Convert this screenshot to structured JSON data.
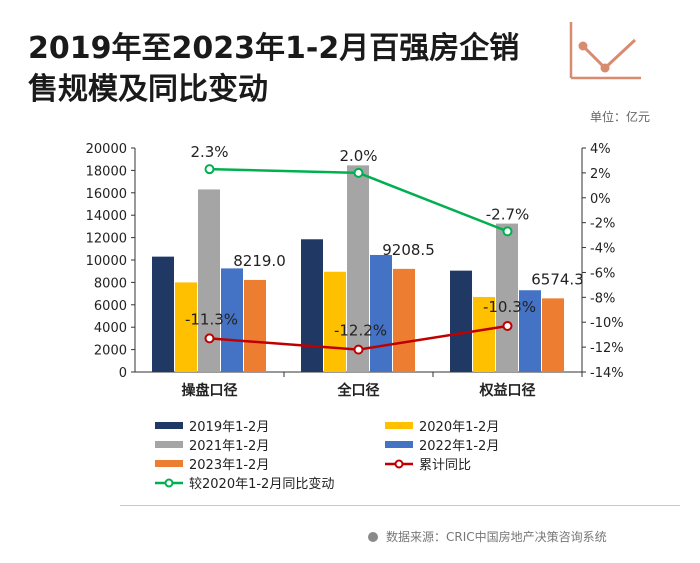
{
  "title": "2019年至2023年1-2月百强房企销售规模及同比变动",
  "unit_label": "单位：亿元",
  "source_label": "数据来源：CRIC中国房地产决策咨询系统",
  "chart_data": {
    "type": "bar",
    "categories": [
      "操盘口径",
      "全口径",
      "权益口径"
    ],
    "series": [
      {
        "name": "2019年1-2月",
        "type": "bar",
        "axis": "left",
        "color": "#1f3864",
        "values": [
          10300,
          11850,
          9050
        ]
      },
      {
        "name": "2020年1-2月",
        "type": "bar",
        "axis": "left",
        "color": "#ffc000",
        "values": [
          8000,
          8950,
          6700
        ]
      },
      {
        "name": "2021年1-2月",
        "type": "bar",
        "axis": "left",
        "color": "#a5a5a5",
        "values": [
          16300,
          18450,
          13250
        ]
      },
      {
        "name": "2022年1-2月",
        "type": "bar",
        "axis": "left",
        "color": "#4472c4",
        "values": [
          9250,
          10450,
          7300
        ]
      },
      {
        "name": "2023年1-2月",
        "type": "bar",
        "axis": "left",
        "color": "#ed7d31",
        "values": [
          8219.0,
          9208.5,
          6574.3
        ]
      },
      {
        "name": "累计同比",
        "type": "line",
        "axis": "right",
        "color": "#c00000",
        "values": [
          -11.3,
          -12.2,
          -10.3
        ]
      },
      {
        "name": "较2020年1-2月同比变动",
        "type": "line",
        "axis": "right",
        "color": "#00b050",
        "values": [
          2.3,
          2.0,
          -2.7
        ]
      }
    ],
    "bar_data_labels": [
      "8219.0",
      "9208.5",
      "6574.3"
    ],
    "yoy_labels": [
      "-11.3%",
      "-12.2%",
      "-10.3%"
    ],
    "vs2020_labels": [
      "2.3%",
      "2.0%",
      "-2.7%"
    ],
    "left_axis": {
      "min": 0,
      "max": 20000,
      "ticks": [
        "0",
        "2000",
        "4000",
        "6000",
        "8000",
        "10000",
        "12000",
        "14000",
        "16000",
        "18000",
        "20000"
      ]
    },
    "right_axis": {
      "min": -14,
      "max": 4,
      "ticks": [
        "-14%",
        "-12%",
        "-10%",
        "-8%",
        "-6%",
        "-4%",
        "-2%",
        "0%",
        "2%",
        "4%"
      ]
    },
    "legend_position": "bottom",
    "grid": false
  }
}
